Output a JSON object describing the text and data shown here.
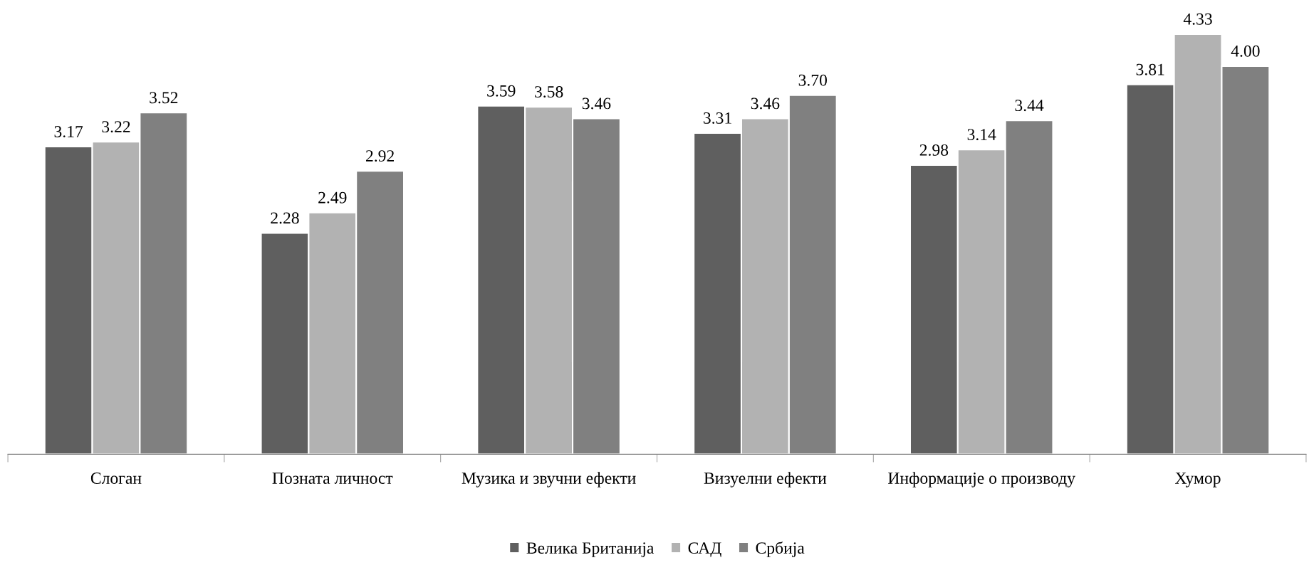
{
  "chart_data": {
    "type": "bar",
    "categories": [
      "Слоган",
      "Позната личност",
      "Музика и звучни ефекти",
      "Визуелни ефекти",
      "Информације о производу",
      "Хумор"
    ],
    "series": [
      {
        "name": "Велика Британија",
        "color": "#5f5f5f",
        "values": [
          3.17,
          2.28,
          3.59,
          3.31,
          2.98,
          3.81
        ],
        "value_labels": [
          "3.17",
          "2.28",
          "3.59",
          "3.31",
          "2.98",
          "3.81"
        ]
      },
      {
        "name": "САД",
        "color": "#b2b2b2",
        "values": [
          3.22,
          2.49,
          3.58,
          3.46,
          3.14,
          4.33
        ],
        "value_labels": [
          "3.22",
          "2.49",
          "3.58",
          "3.46",
          "3.14",
          "4.33"
        ]
      },
      {
        "name": "Србија",
        "color": "#808080",
        "values": [
          3.52,
          2.92,
          3.46,
          3.7,
          3.44,
          4.0
        ],
        "value_labels": [
          "3.52",
          "2.92",
          "3.46",
          "3.70",
          "3.44",
          "4.00"
        ]
      }
    ],
    "legend": "bottom",
    "grid": false,
    "tick_labels": "x"
  }
}
